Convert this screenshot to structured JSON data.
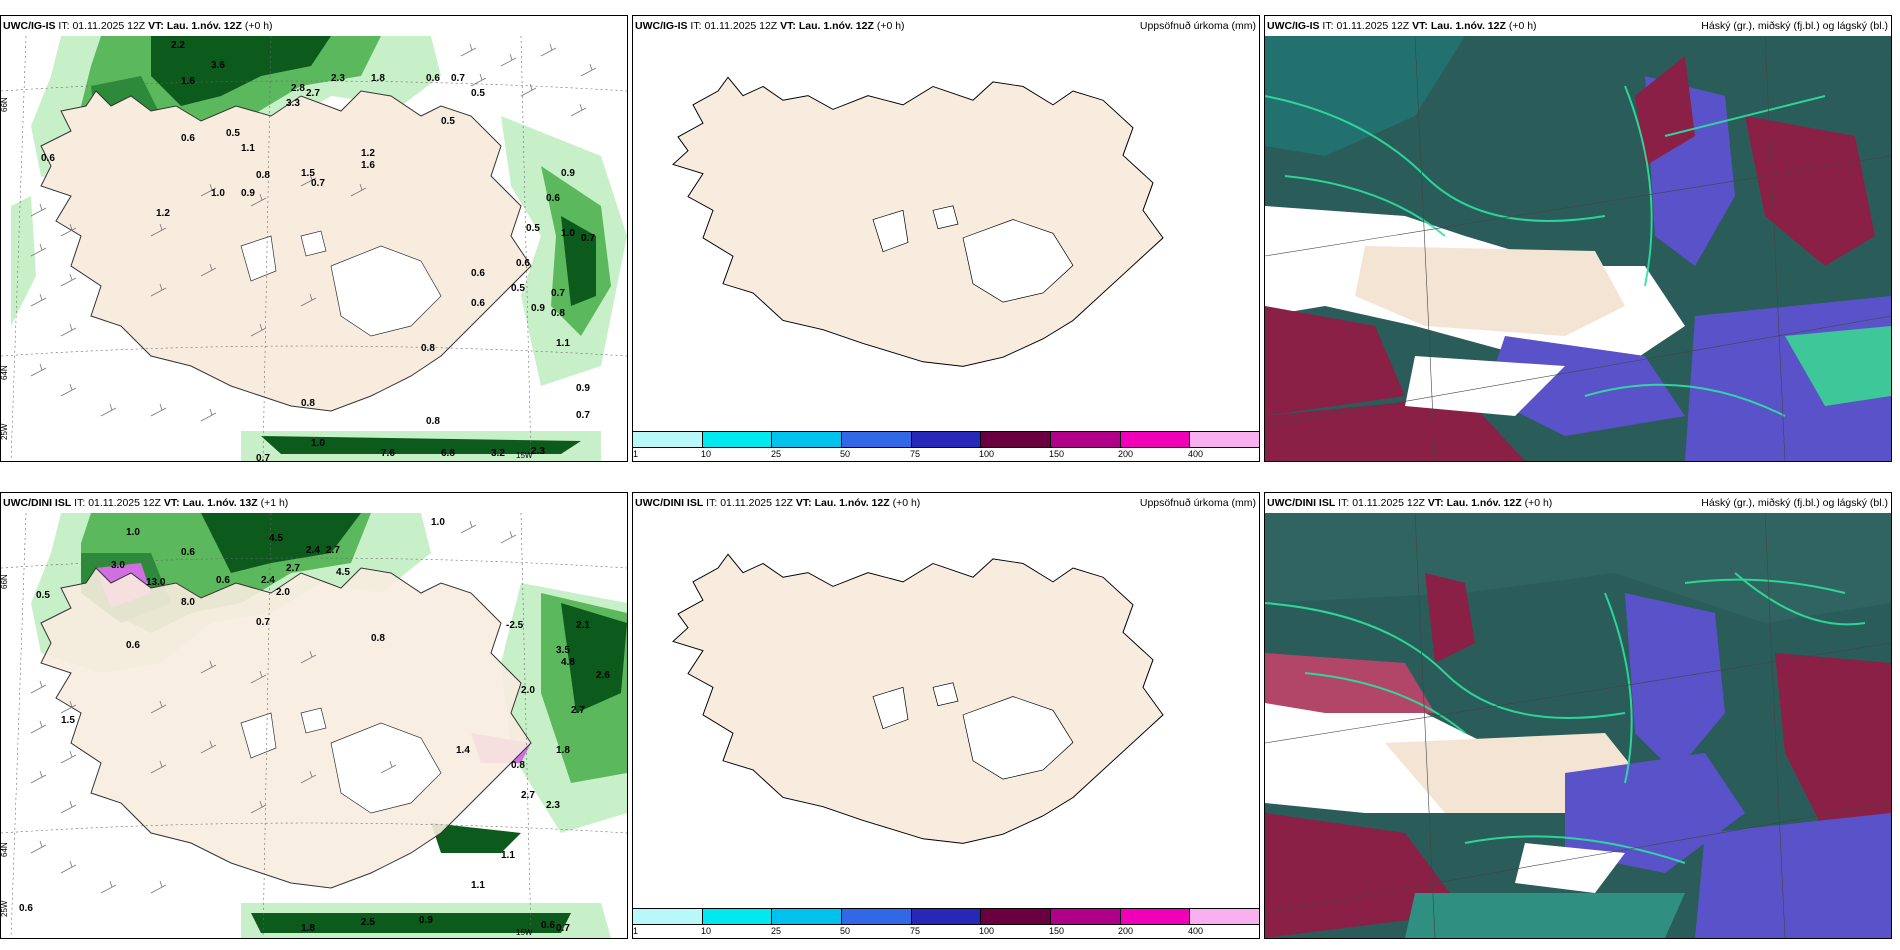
{
  "panels": {
    "p1": {
      "model": "UWC/IG-IS",
      "it_label": "IT:",
      "it_value": "01.11.2025 12Z",
      "vt_label": "VT:",
      "vt_value": "Lau. 1.nóv. 12Z",
      "lead": "(+0 h)"
    },
    "p2": {
      "model": "UWC/IG-IS",
      "it_label": "IT:",
      "it_value": "01.11.2025 12Z",
      "vt_label": "VT:",
      "vt_value": "Lau. 1.nóv. 12Z",
      "lead": "(+0 h)",
      "right": "Uppsöfnuð úrkoma (mm)"
    },
    "p3": {
      "model": "UWC/IG-IS",
      "it_label": "IT:",
      "it_value": "01.11.2025 12Z",
      "vt_label": "VT:",
      "vt_value": "Lau. 1.nóv. 12Z",
      "lead": "(+0 h)",
      "right": "Háský (gr.), miðský (fj.bl.) og lágský (bl.)"
    },
    "p4": {
      "model": "UWC/DINI ISL",
      "it_label": "IT:",
      "it_value": "01.11.2025 12Z",
      "vt_label": "VT:",
      "vt_value": "Lau. 1.nóv. 13Z",
      "lead": "(+1 h)"
    },
    "p5": {
      "model": "UWC/DINI ISL",
      "it_label": "IT:",
      "it_value": "01.11.2025 12Z",
      "vt_label": "VT:",
      "vt_value": "Lau. 1.nóv. 12Z",
      "lead": "(+0 h)",
      "right": "Uppsöfnuð úrkoma (mm)"
    },
    "p6": {
      "model": "UWC/DINI ISL",
      "it_label": "IT:",
      "it_value": "01.11.2025 12Z",
      "vt_label": "VT:",
      "vt_value": "Lau. 1.nóv. 12Z",
      "lead": "(+0 h)",
      "right": "Háský (gr.), miðský (fj.bl.) og lágský (bl.)"
    }
  },
  "legend": {
    "ticks": [
      "1",
      "10",
      "25",
      "50",
      "75",
      "100",
      "150",
      "200",
      "400"
    ],
    "colors": [
      "#b9f8f8",
      "#00e8f0",
      "#00c2ec",
      "#3068e8",
      "#2828b8",
      "#6a0040",
      "#b0008a",
      "#f000b8",
      "#f8b0f0"
    ]
  },
  "grid_labels": {
    "lat66": "66N",
    "lat64": "64N",
    "lon25": "25W",
    "lon15": "15W"
  },
  "map_colors": {
    "land": "#f8ecdf",
    "ice": "#ffffff",
    "precip_light": "#c8f0c8",
    "precip_mid": "#5cb85c",
    "precip_dark": "#0c5a1c",
    "snow": "#d070e0"
  },
  "precip_labels_p1": [
    "2.2",
    "3.6",
    "1.6",
    "2.3",
    "1.8",
    "0.6",
    "0.7",
    "0.5",
    "1.0",
    "0.5",
    "2.8",
    "2.7",
    "3.3",
    "0.5",
    "1.1",
    "0.6",
    "0.6",
    "1.0",
    "0.9",
    "1.0",
    "0.8",
    "1.5",
    "0.7",
    "1.2",
    "1.6",
    "0.6",
    "1.0",
    "0.9",
    "0.7",
    "0.6",
    "0.5",
    "1.0",
    "0.7",
    "0.6",
    "0.5",
    "0.6",
    "0.7",
    "0.9",
    "0.8",
    "1.1",
    "0.8",
    "0.9",
    "0.8",
    "0.7",
    "0.6",
    "0.8",
    "0.8",
    "0.9",
    "1.0",
    "0.7",
    "0.7",
    "7.6",
    "6.8",
    "3.2",
    "2.3"
  ],
  "precip_labels_p4": [
    "1.0",
    "4.5",
    "0.6",
    "1.0",
    "0.5",
    "3.0",
    "13.0",
    "8.0",
    "0.6",
    "2.4",
    "2.7",
    "2.4",
    "2.7",
    "4.5",
    "2.0",
    "0.7",
    "0.8",
    "0.6",
    "1.5",
    "-2.5",
    "2.1",
    "3.5",
    "4.8",
    "2.6",
    "2.0",
    "2.7",
    "1.8",
    "1.4",
    "0.8",
    "2.7",
    "2.3",
    "1.1",
    "1.1",
    "0.6",
    "0.9",
    "0.6",
    "0.7",
    "1.8",
    "2.5"
  ]
}
